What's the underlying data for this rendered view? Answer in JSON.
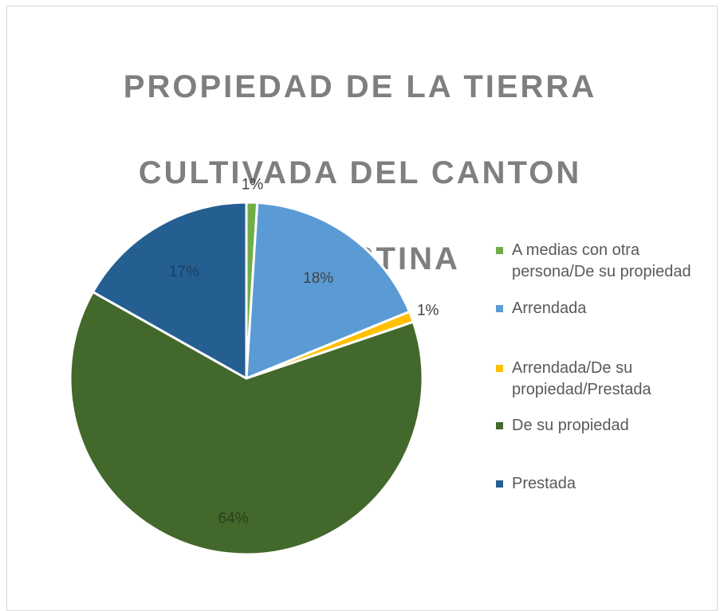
{
  "chart_data": {
    "type": "pie",
    "title_lines": [
      "PROPIEDAD DE LA TIERRA",
      "CULTIVADA DEL CANTON",
      "PALESTINA"
    ],
    "categories": [
      "A medias con otra persona/De su propiedad",
      "Arrendada",
      "Arrendada/De su propiedad/Prestada",
      "De su propiedad",
      "Prestada"
    ],
    "values": [
      1,
      18,
      1,
      64,
      17
    ],
    "data_labels": [
      "1%",
      "18%",
      "1%",
      "64%",
      "17%"
    ],
    "colors": [
      "#70ad47",
      "#5b9bd5",
      "#ffc000",
      "#43682b",
      "#255e91"
    ],
    "legend": {
      "position": "right",
      "entries": [
        "A medias con otra\npersona/De su propiedad",
        "Arrendada",
        "Arrendada/De su\npropiedad/Prestada",
        "De su propiedad",
        "Prestada"
      ]
    }
  }
}
